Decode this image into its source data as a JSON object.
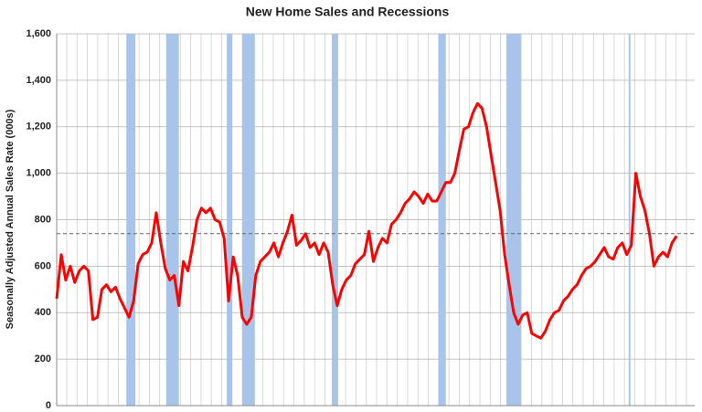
{
  "chart_data": {
    "type": "line",
    "title": "New Home Sales and Recessions",
    "y_label": "Seasonally Adjusted Annual Sales Rate (000s)",
    "ylim": [
      0,
      1600
    ],
    "yticks": [
      0,
      200,
      400,
      600,
      800,
      {
        "value": 1000,
        "label": "1,000"
      },
      {
        "value": 1200,
        "label": "1,200"
      },
      {
        "value": 1400,
        "label": "1,400"
      },
      {
        "value": 1600,
        "label": "1,600"
      }
    ],
    "grid": true,
    "color": "#ff0000",
    "recession_color": "#a9c4eb",
    "reference_line": 740,
    "values": [
      460,
      650,
      540,
      600,
      530,
      580,
      600,
      580,
      370,
      380,
      500,
      520,
      490,
      510,
      460,
      420,
      380,
      450,
      610,
      650,
      660,
      700,
      830,
      700,
      590,
      540,
      560,
      430,
      620,
      580,
      680,
      800,
      850,
      830,
      850,
      800,
      790,
      720,
      450,
      640,
      560,
      380,
      350,
      380,
      560,
      620,
      640,
      660,
      700,
      640,
      700,
      750,
      820,
      690,
      710,
      740,
      680,
      700,
      650,
      700,
      660,
      520,
      430,
      500,
      540,
      560,
      610,
      630,
      650,
      750,
      620,
      680,
      720,
      700,
      780,
      800,
      830,
      870,
      890,
      920,
      900,
      870,
      910,
      880,
      880,
      920,
      960,
      960,
      1000,
      1100,
      1190,
      1200,
      1260,
      1300,
      1280,
      1200,
      1080,
      960,
      840,
      650,
      520,
      400,
      350,
      390,
      400,
      310,
      300,
      290,
      320,
      370,
      400,
      410,
      450,
      470,
      500,
      520,
      560,
      590,
      600,
      620,
      650,
      680,
      640,
      630,
      680,
      700,
      650,
      690,
      1000,
      900,
      840,
      740,
      600,
      640,
      660,
      640,
      700,
      730
    ],
    "recessions": [
      {
        "start": 15.4,
        "end": 17.4
      },
      {
        "start": 24.2,
        "end": 27
      },
      {
        "start": 37.6,
        "end": 38.8
      },
      {
        "start": 41,
        "end": 43.8
      },
      {
        "start": 60.8,
        "end": 62.2
      },
      {
        "start": 84.4,
        "end": 86
      },
      {
        "start": 99.4,
        "end": 102.6
      },
      {
        "start": 126.4,
        "end": 126.8
      }
    ]
  }
}
